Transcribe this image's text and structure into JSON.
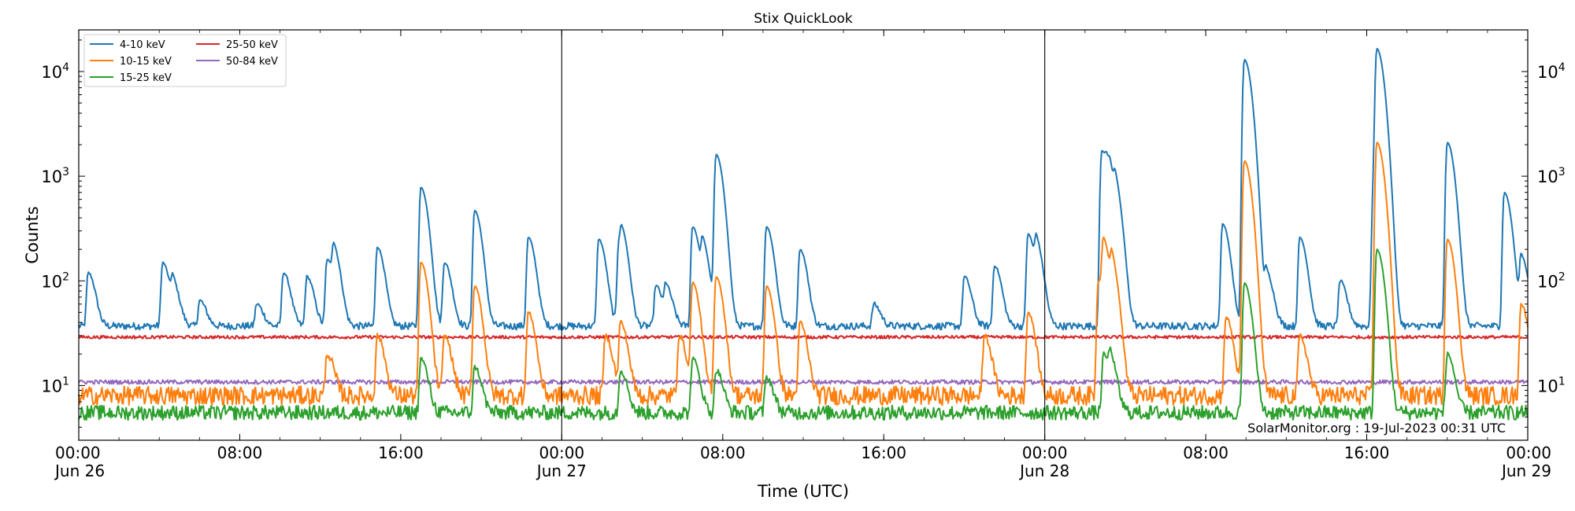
{
  "chart_data": {
    "type": "line",
    "title": "Stix QuickLook",
    "xlabel": "Time (UTC)",
    "ylabel": "Counts",
    "yscale": "log",
    "ylim": [
      3,
      25000
    ],
    "xlim": [
      "2023-06-26 00:00",
      "2023-06-29 00:00"
    ],
    "x_ticks": [
      {
        "t": "2023-06-26 00:00",
        "line1": "00:00",
        "line2": "Jun 26"
      },
      {
        "t": "2023-06-26 08:00",
        "line1": "08:00",
        "line2": ""
      },
      {
        "t": "2023-06-26 16:00",
        "line1": "16:00",
        "line2": ""
      },
      {
        "t": "2023-06-27 00:00",
        "line1": "00:00",
        "line2": "Jun 27"
      },
      {
        "t": "2023-06-27 08:00",
        "line1": "08:00",
        "line2": ""
      },
      {
        "t": "2023-06-27 16:00",
        "line1": "16:00",
        "line2": ""
      },
      {
        "t": "2023-06-28 00:00",
        "line1": "00:00",
        "line2": "Jun 28"
      },
      {
        "t": "2023-06-28 08:00",
        "line1": "08:00",
        "line2": ""
      },
      {
        "t": "2023-06-28 16:00",
        "line1": "16:00",
        "line2": ""
      },
      {
        "t": "2023-06-29 00:00",
        "line1": "00:00",
        "line2": "Jun 29"
      }
    ],
    "y_ticks": [
      {
        "value": 10,
        "base": "10",
        "exp": "1"
      },
      {
        "value": 100,
        "base": "10",
        "exp": "2"
      },
      {
        "value": 1000,
        "base": "10",
        "exp": "3"
      },
      {
        "value": 10000,
        "base": "10",
        "exp": "4"
      }
    ],
    "day_boundaries": [
      "2023-06-27 00:00",
      "2023-06-28 00:00"
    ],
    "legend_position": "upper-left",
    "annotation": "SolarMonitor.org : 19-Jul-2023 00:31 UTC",
    "series": [
      {
        "name": "4-10 keV",
        "color": "#1f77b4",
        "baseline": 37,
        "noise": 0.035,
        "peaks": [
          [
            "2023-06-26 00:28",
            120
          ],
          [
            "2023-06-26 04:10",
            150
          ],
          [
            "2023-06-26 04:40",
            90
          ],
          [
            "2023-06-26 06:00",
            65
          ],
          [
            "2023-06-26 08:50",
            60
          ],
          [
            "2023-06-26 10:10",
            120
          ],
          [
            "2023-06-26 11:20",
            110
          ],
          [
            "2023-06-26 12:20",
            160
          ],
          [
            "2023-06-26 12:40",
            170
          ],
          [
            "2023-06-26 14:50",
            210
          ],
          [
            "2023-06-26 17:00",
            780
          ],
          [
            "2023-06-26 18:10",
            150
          ],
          [
            "2023-06-26 19:40",
            470
          ],
          [
            "2023-06-26 22:20",
            260
          ],
          [
            "2023-06-27 01:50",
            250
          ],
          [
            "2023-06-27 02:50",
            230
          ],
          [
            "2023-06-27 02:58",
            170
          ],
          [
            "2023-06-27 04:40",
            90
          ],
          [
            "2023-06-27 05:10",
            85
          ],
          [
            "2023-06-27 06:30",
            330
          ],
          [
            "2023-06-27 07:00",
            200
          ],
          [
            "2023-06-27 07:40",
            1600
          ],
          [
            "2023-06-27 10:10",
            330
          ],
          [
            "2023-06-27 11:50",
            200
          ],
          [
            "2023-06-27 15:30",
            60
          ],
          [
            "2023-06-27 20:00",
            110
          ],
          [
            "2023-06-27 21:30",
            140
          ],
          [
            "2023-06-27 23:10",
            280
          ],
          [
            "2023-06-27 23:35",
            190
          ],
          [
            "2023-06-28 02:50",
            1750
          ],
          [
            "2023-06-28 03:05",
            450
          ],
          [
            "2023-06-28 03:15",
            480
          ],
          [
            "2023-06-28 03:30",
            550
          ],
          [
            "2023-06-28 08:50",
            350
          ],
          [
            "2023-06-28 09:55",
            13000
          ],
          [
            "2023-06-28 11:00",
            120
          ],
          [
            "2023-06-28 12:40",
            260
          ],
          [
            "2023-06-28 14:40",
            100
          ],
          [
            "2023-06-28 16:20",
            700
          ],
          [
            "2023-06-28 16:30",
            16000
          ],
          [
            "2023-06-28 20:00",
            2100
          ],
          [
            "2023-06-28 22:50",
            700
          ],
          [
            "2023-06-28 23:40",
            170
          ]
        ]
      },
      {
        "name": "10-15 keV",
        "color": "#ff7f0e",
        "baseline": 8,
        "noise": 0.09,
        "peaks": [
          [
            "2023-06-26 12:20",
            20
          ],
          [
            "2023-06-26 14:50",
            30
          ],
          [
            "2023-06-26 17:00",
            150
          ],
          [
            "2023-06-26 18:10",
            30
          ],
          [
            "2023-06-26 19:40",
            90
          ],
          [
            "2023-06-26 22:20",
            50
          ],
          [
            "2023-06-27 02:10",
            30
          ],
          [
            "2023-06-27 02:55",
            40
          ],
          [
            "2023-06-27 05:50",
            30
          ],
          [
            "2023-06-27 06:30",
            95
          ],
          [
            "2023-06-27 07:40",
            110
          ],
          [
            "2023-06-27 10:10",
            90
          ],
          [
            "2023-06-27 11:50",
            40
          ],
          [
            "2023-06-27 21:00",
            30
          ],
          [
            "2023-06-27 23:10",
            50
          ],
          [
            "2023-06-28 02:40",
            100
          ],
          [
            "2023-06-28 02:55",
            200
          ],
          [
            "2023-06-28 03:20",
            120
          ],
          [
            "2023-06-28 09:00",
            45
          ],
          [
            "2023-06-28 09:55",
            1400
          ],
          [
            "2023-06-28 12:40",
            30
          ],
          [
            "2023-06-28 16:30",
            2100
          ],
          [
            "2023-06-28 20:00",
            250
          ],
          [
            "2023-06-28 23:40",
            60
          ]
        ]
      },
      {
        "name": "15-25 keV",
        "color": "#2ca02c",
        "baseline": 5.5,
        "noise": 0.07,
        "peaks": [
          [
            "2023-06-26 17:00",
            18
          ],
          [
            "2023-06-26 19:40",
            15
          ],
          [
            "2023-06-27 02:55",
            14
          ],
          [
            "2023-06-27 06:30",
            18
          ],
          [
            "2023-06-27 07:40",
            14
          ],
          [
            "2023-06-27 10:10",
            12
          ],
          [
            "2023-06-28 02:55",
            20
          ],
          [
            "2023-06-28 03:15",
            15
          ],
          [
            "2023-06-28 09:55",
            95
          ],
          [
            "2023-06-28 16:30",
            200
          ],
          [
            "2023-06-28 20:00",
            20
          ]
        ]
      },
      {
        "name": "25-50 keV",
        "color": "#d62728",
        "baseline": 29,
        "noise": 0.015,
        "peaks": []
      },
      {
        "name": "50-84 keV",
        "color": "#9467bd",
        "baseline": 10.8,
        "noise": 0.02,
        "peaks": []
      }
    ]
  }
}
